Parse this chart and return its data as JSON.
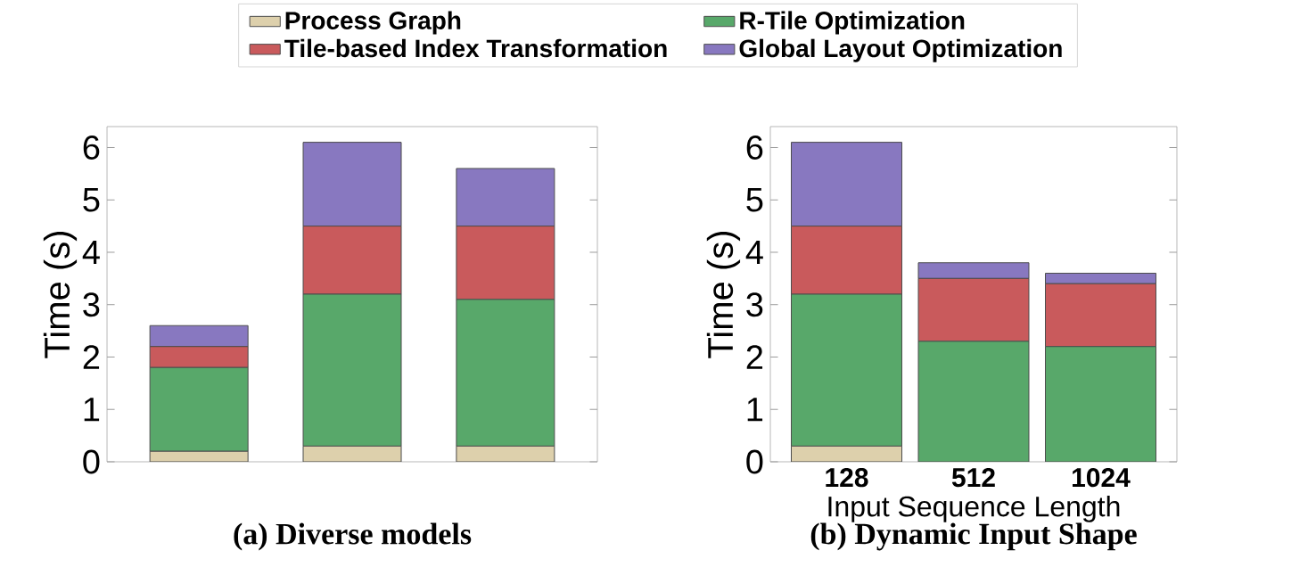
{
  "chart_data": [
    {
      "type": "bar",
      "stacked": true,
      "title": "(a) Diverse models",
      "ylabel": "Time (s)",
      "categories": [
        null,
        null,
        null
      ],
      "ylim": [
        0,
        6.4
      ],
      "yticks": [
        0,
        1,
        2,
        3,
        4,
        5,
        6
      ],
      "legend": "top",
      "series": [
        {
          "name": "Process Graph",
          "color": "#ddd0ac",
          "values": [
            0.2,
            0.3,
            0.3
          ]
        },
        {
          "name": "R-Tile Optimization",
          "color": "#58a86a",
          "values": [
            1.6,
            2.9,
            2.8
          ]
        },
        {
          "name": "Tile-based Index Transformation",
          "color": "#c95a5c",
          "values": [
            0.4,
            1.3,
            1.4
          ]
        },
        {
          "name": "Global Layout Optimization",
          "color": "#8878c0",
          "values": [
            0.4,
            1.6,
            1.1
          ]
        }
      ]
    },
    {
      "type": "bar",
      "stacked": true,
      "title": "(b) Dynamic Input Shape",
      "xlabel": "Input Sequence Length",
      "ylabel": "Time (s)",
      "categories": [
        "128",
        "512",
        "1024"
      ],
      "ylim": [
        0,
        6.4
      ],
      "yticks": [
        0,
        1,
        2,
        3,
        4,
        5,
        6
      ],
      "series": [
        {
          "color": "#ddd0ac",
          "values": [
            0.3,
            0,
            0
          ]
        },
        {
          "color": "#58a86a",
          "values": [
            2.9,
            2.3,
            2.2
          ]
        },
        {
          "color": "#c95a5c",
          "values": [
            1.3,
            1.2,
            1.2
          ]
        },
        {
          "color": "#8878c0",
          "values": [
            1.6,
            0.3,
            0.2
          ]
        }
      ]
    }
  ]
}
